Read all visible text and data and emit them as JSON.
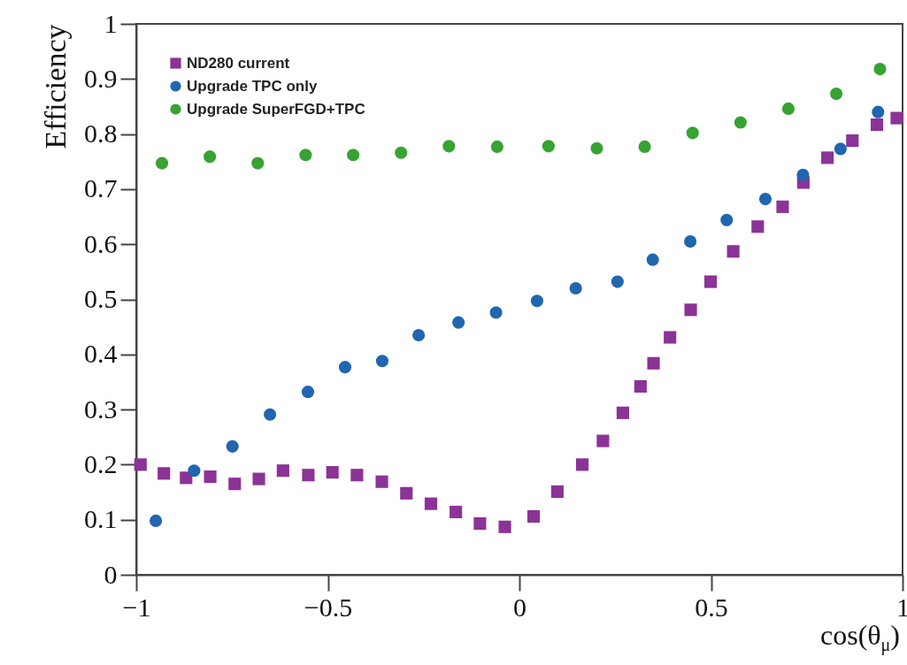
{
  "chart_data": {
    "type": "scatter",
    "xlabel": "cos(θ$_{μ}$)",
    "ylabel": "Efficiency",
    "xlim": [
      -1,
      1
    ],
    "ylim": [
      0,
      1
    ],
    "xticks": [
      {
        "value": -1,
        "label": "−1"
      },
      {
        "value": -0.5,
        "label": "−0.5"
      },
      0,
      0.5,
      1
    ],
    "yticks": [
      0,
      0.1,
      0.2,
      0.3,
      0.4,
      0.5,
      0.6,
      0.7,
      0.8,
      0.9,
      1
    ],
    "legend": "top left",
    "grid": false,
    "series": [
      {
        "name": "ND280 current",
        "color": "#8b3396",
        "marker": "square",
        "x": [
          -0.989,
          -0.928,
          -0.87,
          -0.807,
          -0.743,
          -0.68,
          -0.617,
          -0.551,
          -0.488,
          -0.424,
          -0.359,
          -0.295,
          -0.231,
          -0.166,
          -0.103,
          -0.038,
          0.037,
          0.099,
          0.164,
          0.218,
          0.27,
          0.316,
          0.35,
          0.393,
          0.447,
          0.499,
          0.558,
          0.622,
          0.687,
          0.741,
          0.804,
          0.869,
          0.933,
          0.985
        ],
        "values": [
          0.2,
          0.184,
          0.176,
          0.178,
          0.165,
          0.174,
          0.189,
          0.181,
          0.186,
          0.181,
          0.169,
          0.148,
          0.129,
          0.114,
          0.093,
          0.087,
          0.106,
          0.151,
          0.2,
          0.243,
          0.294,
          0.342,
          0.384,
          0.431,
          0.481,
          0.532,
          0.587,
          0.632,
          0.668,
          0.712,
          0.757,
          0.788,
          0.817,
          0.829
        ]
      },
      {
        "name": "Upgrade TPC only",
        "color": "#2166b0",
        "marker": "circle",
        "x": [
          -0.949,
          -0.849,
          -0.749,
          -0.651,
          -0.552,
          -0.455,
          -0.358,
          -0.263,
          -0.159,
          -0.061,
          0.046,
          0.147,
          0.256,
          0.348,
          0.446,
          0.541,
          0.642,
          0.74,
          0.838,
          0.936
        ],
        "values": [
          0.098,
          0.189,
          0.233,
          0.291,
          0.332,
          0.377,
          0.388,
          0.435,
          0.458,
          0.476,
          0.497,
          0.52,
          0.532,
          0.572,
          0.605,
          0.644,
          0.682,
          0.726,
          0.773,
          0.84
        ]
      },
      {
        "name": "Upgrade SuperFGD+TPC",
        "color": "#36a333",
        "marker": "circle",
        "x": [
          -0.933,
          -0.808,
          -0.683,
          -0.558,
          -0.434,
          -0.309,
          -0.184,
          -0.058,
          0.076,
          0.202,
          0.327,
          0.452,
          0.577,
          0.702,
          0.827,
          0.941
        ],
        "values": [
          0.747,
          0.759,
          0.747,
          0.762,
          0.762,
          0.766,
          0.778,
          0.777,
          0.778,
          0.774,
          0.777,
          0.802,
          0.821,
          0.846,
          0.873,
          0.918
        ]
      }
    ]
  }
}
